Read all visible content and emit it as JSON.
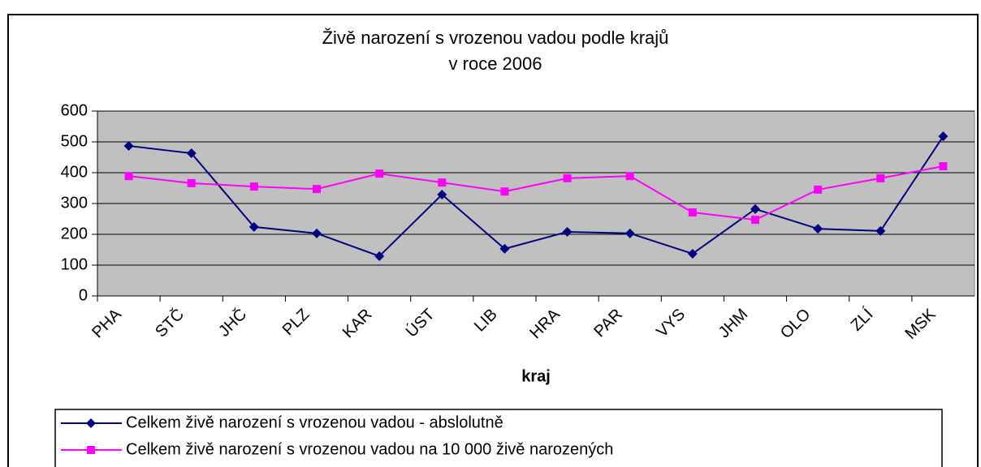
{
  "chart_data": {
    "type": "line",
    "title": [
      "Živě narození s vrozenou vadou podle krajů",
      "v roce 2006"
    ],
    "x_label": "kraj",
    "categories": [
      "PHA",
      "STČ",
      "JHČ",
      "PLZ",
      "KAR",
      "ÚST",
      "LIB",
      "HRA",
      "PAR",
      "VYS",
      "JHM",
      "OLO",
      "ZLÍ",
      "MSK"
    ],
    "series": [
      {
        "name": "Celkem živě narození s vrozenou vadou -  abslolutně",
        "color": "#000080",
        "marker": "diamond",
        "values": [
          487,
          463,
          224,
          203,
          129,
          329,
          153,
          208,
          203,
          137,
          282,
          218,
          211,
          518
        ]
      },
      {
        "name": "Celkem živě narození s vrozenou vadou na 10 000 živě narozených",
        "color": "#ff00ff",
        "marker": "square",
        "values": [
          389,
          366,
          355,
          347,
          397,
          368,
          339,
          382,
          389,
          271,
          247,
          345,
          382,
          421
        ]
      }
    ],
    "ylim": [
      0,
      600
    ],
    "yticks": [
      0,
      100,
      200,
      300,
      400,
      500,
      600
    ],
    "grid": true,
    "plot_background": "#c0c0c0"
  }
}
